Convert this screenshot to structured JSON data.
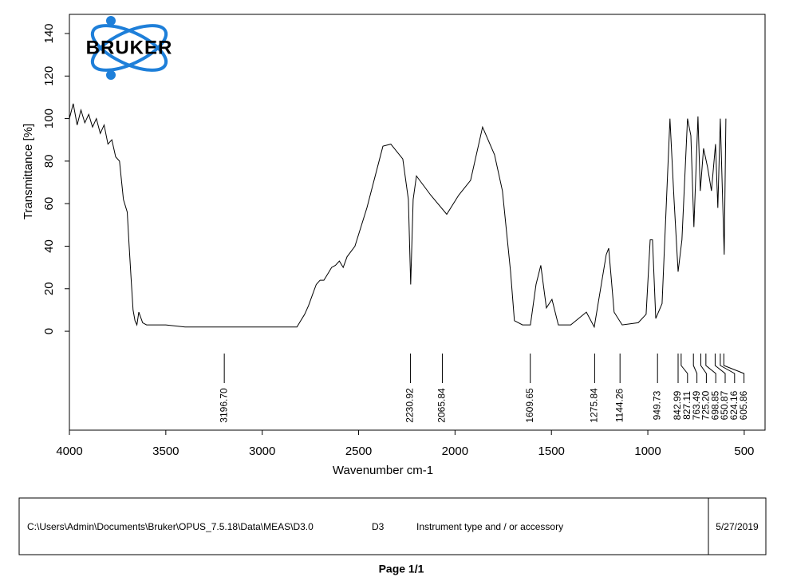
{
  "chart_data": {
    "type": "line",
    "logo": "BRUKER",
    "x_label": "Wavenumber cm-1",
    "y_label": "Transmittance [%]",
    "xlim": [
      4000,
      392
    ],
    "ylim": [
      -46.5,
      149
    ],
    "xticks": [
      4000,
      3500,
      3000,
      2500,
      2000,
      1500,
      1000,
      500
    ],
    "yticks": [
      0,
      20,
      40,
      60,
      80,
      100,
      120,
      140
    ],
    "color": "#000000",
    "x": [
      4000,
      3980,
      3960,
      3940,
      3920,
      3900,
      3880,
      3860,
      3840,
      3820,
      3800,
      3780,
      3760,
      3740,
      3720,
      3700,
      3690,
      3680,
      3670,
      3660,
      3650,
      3640,
      3620,
      3600,
      3500,
      3400,
      3300,
      3200,
      3100,
      3000,
      2900,
      2820,
      2800,
      2780,
      2760,
      2740,
      2720,
      2700,
      2680,
      2660,
      2640,
      2620,
      2600,
      2580,
      2560,
      2519,
      2457,
      2374,
      2333,
      2271,
      2242,
      2230,
      2217,
      2200,
      2126,
      2043,
      1981,
      1919,
      1857,
      1795,
      1754,
      1712,
      1692,
      1650,
      1609,
      1580,
      1555,
      1526,
      1497,
      1464,
      1400,
      1319,
      1278,
      1216,
      1203,
      1175,
      1133,
      1050,
      1009,
      988,
      976,
      959,
      926,
      885,
      864,
      843,
      823,
      794,
      777,
      761,
      740,
      728,
      711,
      690,
      670,
      649,
      637,
      624,
      612,
      604,
      595
    ],
    "values": [
      100,
      107,
      97,
      104,
      98,
      102,
      96,
      100,
      93,
      97,
      88,
      90,
      82,
      80,
      62,
      56,
      40,
      25,
      10,
      5,
      3,
      9,
      4,
      3,
      3,
      2,
      2,
      2,
      2,
      2,
      2,
      2,
      5,
      8,
      12,
      17,
      22,
      24,
      24,
      27,
      30,
      31,
      33,
      30,
      35,
      40,
      58,
      87,
      88,
      81,
      62,
      22,
      62,
      73,
      64,
      55,
      64,
      71,
      96,
      83,
      66,
      28,
      5,
      3,
      3,
      22,
      31,
      11,
      15,
      3,
      3,
      9,
      2,
      36,
      39,
      9,
      3,
      4,
      8,
      43,
      43,
      6,
      13,
      100,
      62,
      28,
      43,
      100,
      92,
      49,
      101,
      66,
      86,
      77,
      66,
      88,
      58,
      100,
      62,
      36,
      100
    ],
    "peaks": [
      {
        "value": 3196.7,
        "label": "3196.70"
      },
      {
        "value": 2230.92,
        "label": "2230.92"
      },
      {
        "value": 2065.84,
        "label": "2065.84"
      },
      {
        "value": 1609.65,
        "label": "1609.65"
      },
      {
        "value": 1275.84,
        "label": "1275.84"
      },
      {
        "value": 1144.26,
        "label": "1144.26"
      },
      {
        "value": 949.73,
        "label": "949.73"
      },
      {
        "value": 842.99,
        "label": "842.99"
      },
      {
        "value": 827.11,
        "label": "827.11"
      },
      {
        "value": 763.49,
        "label": "763.49"
      },
      {
        "value": 725.2,
        "label": "725.20"
      },
      {
        "value": 698.85,
        "label": "698.85"
      },
      {
        "value": 650.87,
        "label": "650.87"
      },
      {
        "value": 624.16,
        "label": "624.16"
      },
      {
        "value": 605.86,
        "label": "605.86"
      }
    ]
  },
  "footer": {
    "path": "C:\\Users\\Admin\\Documents\\Bruker\\OPUS_7.5.18\\Data\\MEAS\\D3.0",
    "sample": "D3",
    "instrument": "Instrument type and / or accessory",
    "date": "5/27/2019",
    "page": "Page 1/1"
  }
}
